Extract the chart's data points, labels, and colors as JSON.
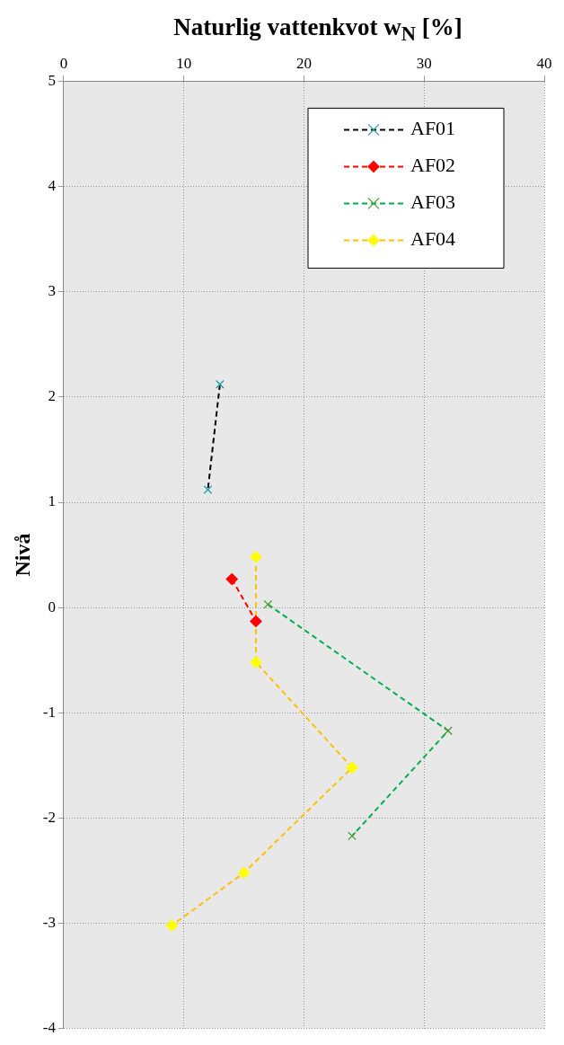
{
  "chart_data": {
    "type": "line",
    "xlabel": "Naturlig vattenkvot w$_{N}$ [%]",
    "ylabel": "Nivå",
    "xlim": [
      0,
      40
    ],
    "xticks": [
      0,
      10,
      20,
      30,
      40
    ],
    "ylim": [
      -4,
      5
    ],
    "yticks": [
      -4,
      -3,
      -2,
      -1,
      0,
      1,
      2,
      3,
      4,
      5
    ],
    "grid": true,
    "legend": "top right",
    "line_style": "dashed",
    "series": [
      {
        "name": "AF01",
        "color": "#000000",
        "colors": [
          "#20a0a8",
          "#20a0a8"
        ],
        "marker": "cross",
        "x": [
          13,
          12
        ],
        "values": [
          2.12,
          1.12
        ]
      },
      {
        "name": "AF02",
        "color": "#ff0000",
        "colors": [
          "#ff0000",
          "#ff0000"
        ],
        "marker": "diamond",
        "x": [
          14,
          16
        ],
        "values": [
          0.27,
          -0.13
        ]
      },
      {
        "name": "AF03",
        "color": "#00b050",
        "colors": [
          "#4a9a30",
          "#4a9a30",
          "#4a9a30"
        ],
        "marker": "cross",
        "x": [
          17,
          32,
          24
        ],
        "values": [
          0.03,
          -1.17,
          -2.17
        ]
      },
      {
        "name": "AF04",
        "color": "#ffc000",
        "colors": [
          "#ffff00",
          "#ffff00",
          "#ffff00",
          "#ffff00",
          "#ffff00"
        ],
        "marker": "diamond",
        "x": [
          16,
          16,
          24,
          15,
          9
        ],
        "values": [
          0.48,
          -0.52,
          -1.52,
          -2.52,
          -3.02
        ]
      }
    ]
  }
}
